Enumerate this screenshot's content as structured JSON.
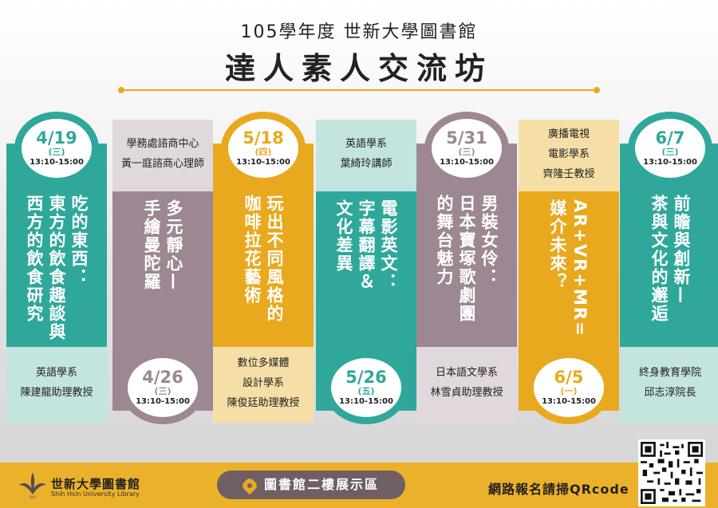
{
  "header": {
    "line1": "105學年度  世新大學圖書館",
    "title": "達人素人交流坊"
  },
  "sessions": [
    {
      "date": "4/19",
      "weekday": "(三)",
      "time": "13:10-15:00",
      "title_lines": [
        "西方的飲食研究",
        "東方的飲食趣談與",
        "吃的東西："
      ],
      "speaker_lines": [
        "英語學系",
        "陳建龍助理教授"
      ],
      "color": "#2fa89b"
    },
    {
      "date": "4/26",
      "weekday": "(三)",
      "time": "13:10-15:00",
      "title_lines": [
        "手繪曼陀羅",
        "多元靜心—"
      ],
      "speaker_lines": [
        "學務處諮商中心",
        "黃一庭諮商心理師"
      ],
      "color": "#9c8793"
    },
    {
      "date": "5/18",
      "weekday": "(四)",
      "time": "13:10-15:00",
      "title_lines": [
        "咖啡拉花藝術",
        "玩出不同風格的"
      ],
      "speaker_lines": [
        "數位多媒體",
        "設計學系",
        "陳俊廷助理教授"
      ],
      "color": "#e9a91e"
    },
    {
      "date": "5/26",
      "weekday": "(五)",
      "time": "13:10-15:00",
      "title_lines": [
        "文化差異",
        "字幕翻譯＆",
        "電影英文："
      ],
      "speaker_lines": [
        "英語學系",
        "葉綺玲講師"
      ],
      "color": "#2fa89b"
    },
    {
      "date": "5/31",
      "weekday": "(三)",
      "time": "13:10-15:00",
      "title_lines": [
        "的舞台魅力",
        "日本寶塚歌劇團",
        "男裝女伶："
      ],
      "speaker_lines": [
        "日本語文學系",
        "林雪貞助理教授"
      ],
      "color": "#9c8793"
    },
    {
      "date": "6/5",
      "weekday": "(一)",
      "time": "13:10-15:00",
      "title_lines": [
        "媒介未來？",
        "AR+VR+MR="
      ],
      "speaker_lines": [
        "廣播電視",
        "電影學系",
        "齊隆壬教授"
      ],
      "color": "#e9a91e"
    },
    {
      "date": "6/7",
      "weekday": "(三)",
      "time": "13:10-15:00",
      "title_lines": [
        "茶與文化的邂逅",
        "前瞻與創新—"
      ],
      "speaker_lines": [
        "終身教育學院",
        "邱志淳院長"
      ],
      "color": "#2fa89b"
    }
  ],
  "footer": {
    "library_name": "世新大學圖書館",
    "library_en": "Shih Hsin University Library",
    "location": "圖書館二樓展示區",
    "qr_text": "網路報名請掃QRcode",
    "icons": [
      "library-logo",
      "location-pin-icon",
      "qr-code"
    ]
  }
}
